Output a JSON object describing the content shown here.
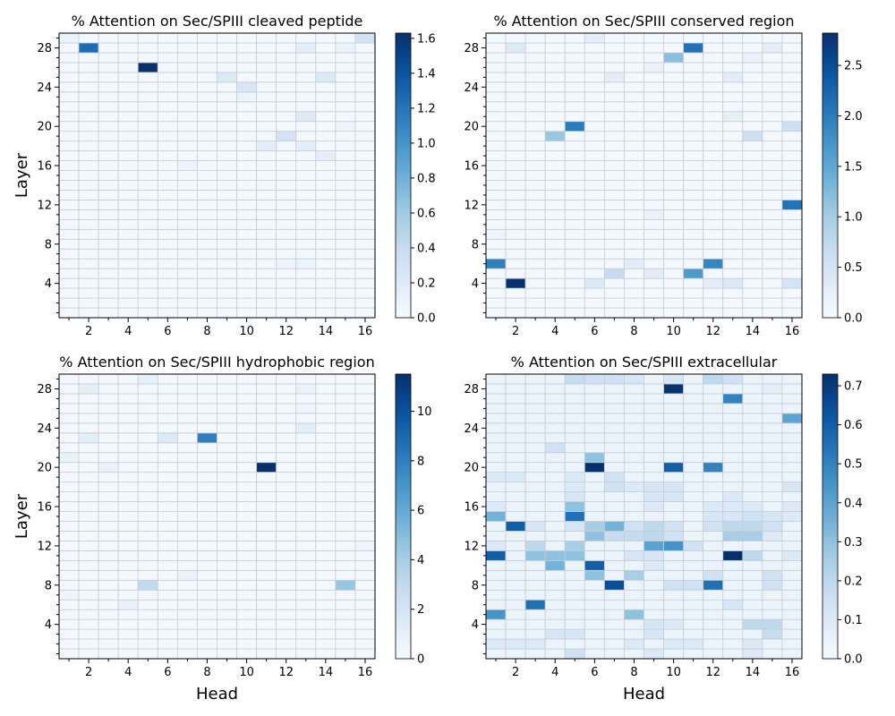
{
  "figure": {
    "xlabel": "Head",
    "ylabel": "Layer"
  },
  "chart_data": [
    {
      "type": "heatmap",
      "title": "% Attention on Sec/SPIII cleaved peptide",
      "xlabel": "",
      "ylabel": "Layer",
      "x_ticks": [
        "2",
        "4",
        "6",
        "8",
        "10",
        "12",
        "14",
        "16"
      ],
      "y_ticks": [
        "4",
        "8",
        "12",
        "16",
        "20",
        "24",
        "28"
      ],
      "n_heads": 16,
      "n_layers": 29,
      "vmin": 0,
      "vmax": 1.63,
      "colorbar_ticks": [
        "0.0",
        "0.2",
        "0.4",
        "0.6",
        "0.8",
        "1.0",
        "1.2",
        "1.4",
        "1.6"
      ],
      "colorbar_tick_values": [
        0,
        0.2,
        0.4,
        0.6,
        0.8,
        1.0,
        1.2,
        1.4,
        1.6
      ],
      "background": 0.04,
      "cells": [
        [
          29,
          1,
          0.12
        ],
        [
          29,
          16,
          0.3
        ],
        [
          28,
          2,
          1.25
        ],
        [
          28,
          13,
          0.15
        ],
        [
          28,
          15,
          0.12
        ],
        [
          26,
          5,
          1.63
        ],
        [
          25,
          9,
          0.22
        ],
        [
          25,
          14,
          0.22
        ],
        [
          24,
          10,
          0.25
        ],
        [
          23,
          10,
          0.1
        ],
        [
          21,
          13,
          0.2
        ],
        [
          20,
          15,
          0.1
        ],
        [
          19,
          12,
          0.3
        ],
        [
          18,
          11,
          0.18
        ],
        [
          18,
          13,
          0.18
        ],
        [
          17,
          14,
          0.15
        ],
        [
          16,
          7,
          0.1
        ],
        [
          6,
          12,
          0.1
        ],
        [
          6,
          13,
          0.1
        ]
      ]
    },
    {
      "type": "heatmap",
      "title": "% Attention on Sec/SPIII conserved region",
      "xlabel": "",
      "ylabel": "",
      "x_ticks": [
        "2",
        "4",
        "6",
        "8",
        "10",
        "12",
        "14",
        "16"
      ],
      "y_ticks": [
        "4",
        "8",
        "12",
        "16",
        "20",
        "24",
        "28"
      ],
      "n_heads": 16,
      "n_layers": 29,
      "vmin": 0,
      "vmax": 2.82,
      "colorbar_ticks": [
        "0.0",
        "0.5",
        "1.0",
        "1.5",
        "2.0",
        "2.5"
      ],
      "colorbar_tick_values": [
        0,
        0.5,
        1.0,
        1.5,
        2.0,
        2.5
      ],
      "background": 0.06,
      "cells": [
        [
          29,
          6,
          0.3
        ],
        [
          28,
          2,
          0.35
        ],
        [
          28,
          11,
          2.1
        ],
        [
          28,
          15,
          0.3
        ],
        [
          27,
          10,
          1.2
        ],
        [
          27,
          14,
          0.2
        ],
        [
          26,
          9,
          0.2
        ],
        [
          25,
          7,
          0.3
        ],
        [
          25,
          13,
          0.3
        ],
        [
          21,
          13,
          0.25
        ],
        [
          20,
          5,
          2.0
        ],
        [
          20,
          16,
          0.6
        ],
        [
          19,
          4,
          1.1
        ],
        [
          19,
          14,
          0.6
        ],
        [
          12,
          16,
          2.1
        ],
        [
          11,
          9,
          0.2
        ],
        [
          9,
          1,
          0.15
        ],
        [
          6,
          1,
          1.95
        ],
        [
          6,
          8,
          0.3
        ],
        [
          6,
          12,
          1.9
        ],
        [
          5,
          7,
          0.7
        ],
        [
          5,
          9,
          0.3
        ],
        [
          5,
          11,
          1.65
        ],
        [
          4,
          2,
          2.82
        ],
        [
          4,
          6,
          0.4
        ],
        [
          4,
          12,
          0.3
        ],
        [
          4,
          13,
          0.4
        ],
        [
          4,
          16,
          0.5
        ]
      ]
    },
    {
      "type": "heatmap",
      "title": "% Attention on Sec/SPIII hydrophobic region",
      "xlabel": "Head",
      "ylabel": "Layer",
      "x_ticks": [
        "2",
        "4",
        "6",
        "8",
        "10",
        "12",
        "14",
        "16"
      ],
      "y_ticks": [
        "4",
        "8",
        "12",
        "16",
        "20",
        "24",
        "28"
      ],
      "n_heads": 16,
      "n_layers": 29,
      "vmin": 0,
      "vmax": 11.5,
      "colorbar_ticks": [
        "0",
        "2",
        "4",
        "6",
        "8",
        "10"
      ],
      "colorbar_tick_values": [
        0,
        2,
        4,
        6,
        8,
        10
      ],
      "background": 0.3,
      "cells": [
        [
          29,
          5,
          1.0
        ],
        [
          28,
          2,
          1.0
        ],
        [
          28,
          13,
          0.8
        ],
        [
          26,
          13,
          0.6
        ],
        [
          24,
          13,
          1.2
        ],
        [
          23,
          2,
          1.2
        ],
        [
          23,
          6,
          1.5
        ],
        [
          23,
          8,
          8.0
        ],
        [
          21,
          1,
          0.8
        ],
        [
          20,
          11,
          11.5
        ],
        [
          20,
          3,
          0.8
        ],
        [
          12,
          16,
          0.6
        ],
        [
          9,
          7,
          0.8
        ],
        [
          8,
          5,
          3.0
        ],
        [
          8,
          15,
          4.5
        ],
        [
          7,
          1,
          0.6
        ],
        [
          6,
          4,
          1.0
        ]
      ]
    },
    {
      "type": "heatmap",
      "title": "% Attention on Sec/SPIII extracellular",
      "xlabel": "Head",
      "ylabel": "",
      "x_ticks": [
        "2",
        "4",
        "6",
        "8",
        "10",
        "12",
        "14",
        "16"
      ],
      "y_ticks": [
        "4",
        "8",
        "12",
        "16",
        "20",
        "24",
        "28"
      ],
      "n_heads": 16,
      "n_layers": 29,
      "vmin": 0,
      "vmax": 0.73,
      "colorbar_ticks": [
        "0.0",
        "0.1",
        "0.2",
        "0.3",
        "0.4",
        "0.5",
        "0.6",
        "0.7"
      ],
      "colorbar_tick_values": [
        0,
        0.1,
        0.2,
        0.3,
        0.4,
        0.5,
        0.6,
        0.7
      ],
      "background": 0.04,
      "cells": [
        [
          29,
          5,
          0.18
        ],
        [
          29,
          6,
          0.15
        ],
        [
          29,
          7,
          0.15
        ],
        [
          29,
          8,
          0.12
        ],
        [
          29,
          10,
          0.12
        ],
        [
          29,
          12,
          0.2
        ],
        [
          29,
          13,
          0.15
        ],
        [
          28,
          10,
          0.72
        ],
        [
          28,
          15,
          0.08
        ],
        [
          27,
          13,
          0.5
        ],
        [
          25,
          16,
          0.4
        ],
        [
          22,
          4,
          0.15
        ],
        [
          21,
          6,
          0.3
        ],
        [
          20,
          6,
          0.73
        ],
        [
          20,
          10,
          0.6
        ],
        [
          20,
          12,
          0.5
        ],
        [
          19,
          1,
          0.1
        ],
        [
          19,
          2,
          0.1
        ],
        [
          19,
          5,
          0.1
        ],
        [
          19,
          7,
          0.15
        ],
        [
          18,
          5,
          0.1
        ],
        [
          18,
          7,
          0.15
        ],
        [
          18,
          8,
          0.1
        ],
        [
          18,
          9,
          0.12
        ],
        [
          18,
          10,
          0.12
        ],
        [
          18,
          16,
          0.12
        ],
        [
          17,
          5,
          0.12
        ],
        [
          17,
          9,
          0.12
        ],
        [
          17,
          10,
          0.12
        ],
        [
          17,
          13,
          0.1
        ],
        [
          16,
          1,
          0.1
        ],
        [
          16,
          5,
          0.3
        ],
        [
          16,
          9,
          0.1
        ],
        [
          16,
          12,
          0.1
        ],
        [
          16,
          13,
          0.1
        ],
        [
          16,
          14,
          0.1
        ],
        [
          16,
          16,
          0.1
        ],
        [
          15,
          1,
          0.35
        ],
        [
          15,
          5,
          0.55
        ],
        [
          15,
          12,
          0.12
        ],
        [
          15,
          13,
          0.12
        ],
        [
          15,
          14,
          0.15
        ],
        [
          15,
          15,
          0.12
        ],
        [
          15,
          16,
          0.1
        ],
        [
          14,
          2,
          0.6
        ],
        [
          14,
          3,
          0.12
        ],
        [
          14,
          5,
          0.12
        ],
        [
          14,
          6,
          0.25
        ],
        [
          14,
          7,
          0.35
        ],
        [
          14,
          8,
          0.15
        ],
        [
          14,
          9,
          0.2
        ],
        [
          14,
          10,
          0.15
        ],
        [
          14,
          12,
          0.15
        ],
        [
          14,
          13,
          0.2
        ],
        [
          14,
          14,
          0.2
        ],
        [
          14,
          15,
          0.15
        ],
        [
          13,
          6,
          0.3
        ],
        [
          13,
          7,
          0.18
        ],
        [
          13,
          8,
          0.18
        ],
        [
          13,
          9,
          0.2
        ],
        [
          13,
          10,
          0.15
        ],
        [
          13,
          13,
          0.25
        ],
        [
          13,
          14,
          0.25
        ],
        [
          13,
          15,
          0.1
        ],
        [
          12,
          1,
          0.1
        ],
        [
          12,
          3,
          0.2
        ],
        [
          12,
          5,
          0.25
        ],
        [
          12,
          9,
          0.4
        ],
        [
          12,
          10,
          0.45
        ],
        [
          12,
          11,
          0.15
        ],
        [
          11,
          1,
          0.6
        ],
        [
          11,
          3,
          0.3
        ],
        [
          11,
          4,
          0.3
        ],
        [
          11,
          5,
          0.3
        ],
        [
          11,
          8,
          0.12
        ],
        [
          11,
          9,
          0.12
        ],
        [
          11,
          13,
          0.73
        ],
        [
          11,
          14,
          0.2
        ],
        [
          11,
          16,
          0.1
        ],
        [
          10,
          4,
          0.35
        ],
        [
          10,
          6,
          0.6
        ],
        [
          10,
          9,
          0.1
        ],
        [
          9,
          6,
          0.3
        ],
        [
          9,
          8,
          0.25
        ],
        [
          9,
          12,
          0.15
        ],
        [
          9,
          15,
          0.15
        ],
        [
          8,
          7,
          0.65
        ],
        [
          8,
          10,
          0.15
        ],
        [
          8,
          11,
          0.15
        ],
        [
          8,
          12,
          0.55
        ],
        [
          8,
          15,
          0.15
        ],
        [
          6,
          3,
          0.55
        ],
        [
          6,
          13,
          0.12
        ],
        [
          5,
          1,
          0.45
        ],
        [
          5,
          8,
          0.3
        ],
        [
          4,
          9,
          0.12
        ],
        [
          4,
          10,
          0.1
        ],
        [
          4,
          14,
          0.2
        ],
        [
          4,
          15,
          0.2
        ],
        [
          3,
          4,
          0.12
        ],
        [
          3,
          5,
          0.12
        ],
        [
          3,
          9,
          0.12
        ],
        [
          3,
          15,
          0.18
        ],
        [
          2,
          1,
          0.1
        ],
        [
          2,
          2,
          0.1
        ],
        [
          2,
          3,
          0.1
        ],
        [
          2,
          8,
          0.1
        ],
        [
          2,
          10,
          0.1
        ],
        [
          2,
          11,
          0.1
        ],
        [
          2,
          14,
          0.1
        ],
        [
          1,
          5,
          0.15
        ],
        [
          1,
          9,
          0.1
        ],
        [
          1,
          14,
          0.1
        ]
      ]
    }
  ]
}
